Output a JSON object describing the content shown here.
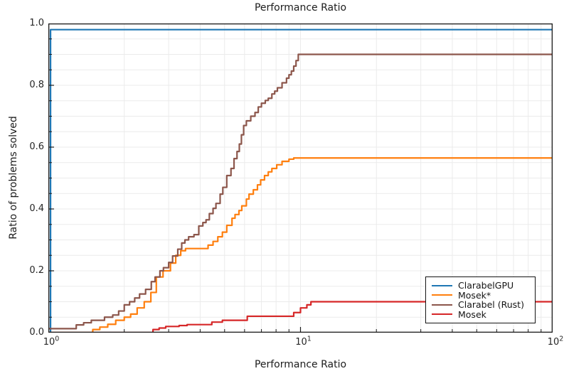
{
  "chart_data": {
    "type": "line",
    "title": "Performance Ratio",
    "xlabel": "Performance Ratio",
    "ylabel": "Ratio of problems solved",
    "x_scale": "log10",
    "xlim": [
      1,
      100
    ],
    "ylim": [
      0.0,
      1.0
    ],
    "grid": true,
    "legend_position": "lower right",
    "x_ticks": [
      {
        "base": "10",
        "exp": "0",
        "value": 1
      },
      {
        "base": "10",
        "exp": "1",
        "value": 10
      },
      {
        "base": "10",
        "exp": "2",
        "value": 100
      }
    ],
    "y_ticks": [
      {
        "label": "0.0",
        "value": 0.0
      },
      {
        "label": "0.2",
        "value": 0.2
      },
      {
        "label": "0.4",
        "value": 0.4
      },
      {
        "label": "0.6",
        "value": 0.6
      },
      {
        "label": "0.8",
        "value": 0.8
      },
      {
        "label": "1.0",
        "value": 1.0
      }
    ],
    "y_minor_step": 0.05,
    "axis_color": "#1a1a1a",
    "grid_color": "#ebebeb",
    "series": [
      {
        "name": "ClarabelGPU",
        "color": "#1f77b4",
        "points": [
          [
            1,
            0.0
          ],
          [
            1.02,
            0.98
          ],
          [
            100,
            0.98
          ]
        ]
      },
      {
        "name": "Mosek*",
        "color": "#ff7f0e",
        "points": [
          [
            1,
            0.0
          ],
          [
            1.5,
            0.01
          ],
          [
            1.6,
            0.018
          ],
          [
            1.72,
            0.027
          ],
          [
            1.85,
            0.04
          ],
          [
            2.0,
            0.05
          ],
          [
            2.12,
            0.06
          ],
          [
            2.25,
            0.08
          ],
          [
            2.4,
            0.1
          ],
          [
            2.55,
            0.13
          ],
          [
            2.68,
            0.18
          ],
          [
            2.85,
            0.2
          ],
          [
            3.05,
            0.225
          ],
          [
            3.2,
            0.25
          ],
          [
            3.35,
            0.265
          ],
          [
            3.5,
            0.272
          ],
          [
            4.3,
            0.283
          ],
          [
            4.5,
            0.295
          ],
          [
            4.7,
            0.31
          ],
          [
            4.9,
            0.325
          ],
          [
            5.1,
            0.347
          ],
          [
            5.35,
            0.37
          ],
          [
            5.5,
            0.382
          ],
          [
            5.7,
            0.395
          ],
          [
            5.85,
            0.41
          ],
          [
            6.1,
            0.432
          ],
          [
            6.25,
            0.448
          ],
          [
            6.5,
            0.462
          ],
          [
            6.75,
            0.478
          ],
          [
            6.95,
            0.494
          ],
          [
            7.2,
            0.508
          ],
          [
            7.45,
            0.52
          ],
          [
            7.7,
            0.531
          ],
          [
            8.05,
            0.543
          ],
          [
            8.45,
            0.554
          ],
          [
            9.0,
            0.561
          ],
          [
            9.4,
            0.565
          ],
          [
            100,
            0.565
          ]
        ]
      },
      {
        "name": "Clarabel (Rust)",
        "color": "#8c564b",
        "points": [
          [
            1,
            0.013
          ],
          [
            1.29,
            0.025
          ],
          [
            1.38,
            0.032
          ],
          [
            1.48,
            0.04
          ],
          [
            1.67,
            0.05
          ],
          [
            1.8,
            0.057
          ],
          [
            1.9,
            0.07
          ],
          [
            2.0,
            0.09
          ],
          [
            2.1,
            0.1
          ],
          [
            2.2,
            0.112
          ],
          [
            2.3,
            0.125
          ],
          [
            2.43,
            0.14
          ],
          [
            2.56,
            0.165
          ],
          [
            2.65,
            0.18
          ],
          [
            2.77,
            0.2
          ],
          [
            2.86,
            0.21
          ],
          [
            3.0,
            0.227
          ],
          [
            3.11,
            0.248
          ],
          [
            3.26,
            0.27
          ],
          [
            3.38,
            0.29
          ],
          [
            3.48,
            0.3
          ],
          [
            3.6,
            0.31
          ],
          [
            3.78,
            0.317
          ],
          [
            3.95,
            0.345
          ],
          [
            4.1,
            0.356
          ],
          [
            4.22,
            0.365
          ],
          [
            4.35,
            0.385
          ],
          [
            4.5,
            0.402
          ],
          [
            4.62,
            0.418
          ],
          [
            4.8,
            0.448
          ],
          [
            4.92,
            0.47
          ],
          [
            5.1,
            0.508
          ],
          [
            5.3,
            0.531
          ],
          [
            5.45,
            0.563
          ],
          [
            5.6,
            0.586
          ],
          [
            5.72,
            0.61
          ],
          [
            5.83,
            0.64
          ],
          [
            5.95,
            0.67
          ],
          [
            6.1,
            0.685
          ],
          [
            6.35,
            0.7
          ],
          [
            6.6,
            0.712
          ],
          [
            6.8,
            0.73
          ],
          [
            7.0,
            0.742
          ],
          [
            7.25,
            0.751
          ],
          [
            7.45,
            0.758
          ],
          [
            7.7,
            0.772
          ],
          [
            7.9,
            0.781
          ],
          [
            8.1,
            0.792
          ],
          [
            8.45,
            0.808
          ],
          [
            8.8,
            0.823
          ],
          [
            9.0,
            0.834
          ],
          [
            9.2,
            0.846
          ],
          [
            9.4,
            0.862
          ],
          [
            9.6,
            0.88
          ],
          [
            9.8,
            0.9
          ],
          [
            100,
            0.9
          ]
        ]
      },
      {
        "name": "Mosek",
        "color": "#d62728",
        "points": [
          [
            1,
            0.0
          ],
          [
            2.6,
            0.01
          ],
          [
            2.75,
            0.015
          ],
          [
            2.92,
            0.02
          ],
          [
            3.3,
            0.023
          ],
          [
            3.55,
            0.026
          ],
          [
            4.45,
            0.034
          ],
          [
            4.9,
            0.04
          ],
          [
            6.15,
            0.053
          ],
          [
            9.4,
            0.065
          ],
          [
            10.0,
            0.08
          ],
          [
            10.6,
            0.09
          ],
          [
            11.0,
            0.1
          ],
          [
            100,
            0.1
          ]
        ]
      }
    ]
  }
}
